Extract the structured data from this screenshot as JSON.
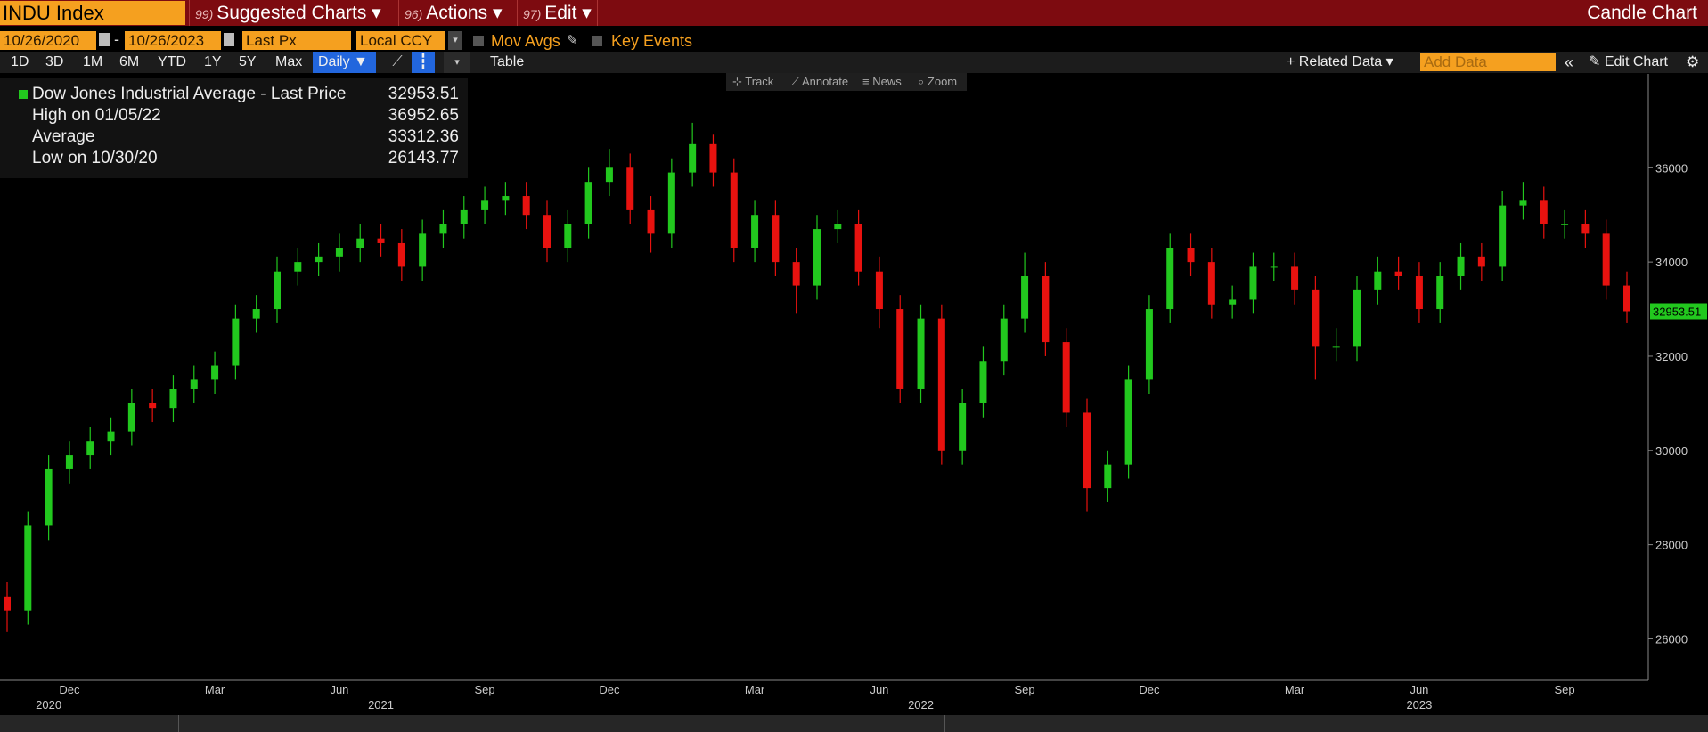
{
  "toolbar": {
    "ticker": "INDU Index",
    "menus": [
      {
        "code": "99)",
        "label": "Suggested Charts"
      },
      {
        "code": "96)",
        "label": "Actions"
      },
      {
        "code": "97)",
        "label": "Edit"
      }
    ],
    "view_title": "Candle Chart"
  },
  "controls": {
    "start_date": "10/26/2020",
    "separator": "-",
    "end_date": "10/26/2023",
    "field": "Last Px",
    "currency": "Local CCY",
    "toggles": [
      "Mov Avgs",
      "Key Events"
    ]
  },
  "range_bar": {
    "periods": [
      "1D",
      "3D",
      "1M",
      "6M",
      "YTD",
      "1Y",
      "5Y",
      "Max"
    ],
    "frequency": "Daily",
    "table": "Table",
    "related_data": "Related Data",
    "add_data_placeholder": "Add Data",
    "edit_chart": "Edit Chart"
  },
  "chart_tools": [
    "Track",
    "Annotate",
    "News",
    "Zoom"
  ],
  "chart_data": {
    "type": "candlestick",
    "up_color": "#22c81e",
    "down_color": "#e8120f",
    "legend": {
      "title": "Dow Jones Industrial Average - Last Price",
      "stats": [
        {
          "label": "High on 01/05/22",
          "value": 36952.65
        },
        {
          "label": "Average",
          "value": 33312.36
        },
        {
          "label": "Low on 10/30/20",
          "value": 26143.77
        }
      ]
    },
    "categories": [
      null,
      null,
      null,
      "Dec",
      null,
      null,
      null,
      null,
      null,
      null,
      "Mar",
      null,
      null,
      null,
      null,
      null,
      "Jun",
      null,
      null,
      null,
      null,
      null,
      null,
      "Sep",
      null,
      null,
      null,
      null,
      null,
      "Dec",
      null,
      null,
      null,
      null,
      null,
      null,
      "Mar",
      null,
      null,
      null,
      null,
      null,
      "Jun",
      null,
      null,
      null,
      null,
      null,
      null,
      "Sep",
      null,
      null,
      null,
      null,
      null,
      "Dec",
      null,
      null,
      null,
      null,
      null,
      null,
      "Mar",
      null,
      null,
      null,
      null,
      null,
      "Jun",
      null,
      null,
      null,
      null,
      null,
      null,
      "Sep",
      null,
      null,
      null
    ],
    "year_categories": [
      null,
      null,
      "2020",
      null,
      null,
      null,
      null,
      null,
      null,
      null,
      null,
      null,
      null,
      null,
      null,
      null,
      null,
      null,
      "2021",
      null,
      null,
      null,
      null,
      null,
      null,
      null,
      null,
      null,
      null,
      null,
      null,
      null,
      null,
      null,
      null,
      null,
      null,
      null,
      null,
      null,
      null,
      null,
      null,
      null,
      "2022",
      null,
      null,
      null,
      null,
      null,
      null,
      null,
      null,
      null,
      null,
      null,
      null,
      null,
      null,
      null,
      null,
      null,
      null,
      null,
      null,
      null,
      null,
      null,
      "2023",
      null,
      null,
      null,
      null,
      null,
      null,
      null,
      null,
      null,
      null
    ],
    "open": [
      26900,
      26600,
      28400,
      29600,
      29900,
      30200,
      30400,
      31000,
      30900,
      31300,
      31500,
      31800,
      32800,
      33000,
      33800,
      34000,
      34100,
      34300,
      34500,
      34400,
      33900,
      34600,
      34800,
      35100,
      35300,
      35400,
      35000,
      34300,
      34800,
      35700,
      36000,
      35100,
      34600,
      35900,
      36500,
      35900,
      34300,
      35000,
      34000,
      33500,
      34700,
      34800,
      33800,
      33000,
      31300,
      32800,
      30000,
      31000,
      31900,
      32800,
      33700,
      32300,
      30800,
      29200,
      29700,
      31500,
      33000,
      34300,
      34000,
      33100,
      33200,
      33900,
      33900,
      33400,
      32200,
      32200,
      33400,
      33800,
      33700,
      33000,
      33700,
      34100,
      33900,
      35200,
      35300,
      34800,
      34800,
      34600,
      33500
    ],
    "high": [
      27200,
      28700,
      29900,
      30200,
      30500,
      30700,
      31300,
      31300,
      31600,
      31800,
      32100,
      33100,
      33300,
      34100,
      34300,
      34400,
      34600,
      34800,
      34800,
      34700,
      34900,
      35100,
      35400,
      35600,
      35700,
      35700,
      35300,
      35100,
      36000,
      36400,
      36300,
      35400,
      36200,
      36952.65,
      36700,
      36200,
      35300,
      35300,
      34300,
      35000,
      35100,
      35100,
      34100,
      33300,
      33100,
      33100,
      31300,
      32200,
      33100,
      34200,
      34000,
      32600,
      31100,
      30000,
      31800,
      33300,
      34600,
      34600,
      34300,
      33500,
      34200,
      34200,
      34200,
      33700,
      32600,
      33700,
      34100,
      34100,
      34000,
      34000,
      34400,
      34400,
      35500,
      35700,
      35600,
      35100,
      35100,
      34900,
      33800
    ],
    "low": [
      26143.77,
      26300,
      28100,
      29300,
      29600,
      29900,
      30100,
      30600,
      30600,
      31000,
      31200,
      31500,
      32500,
      32700,
      33500,
      33700,
      33800,
      34000,
      34100,
      33600,
      33600,
      34300,
      34500,
      34800,
      35000,
      34700,
      34000,
      34000,
      34500,
      35400,
      34800,
      34200,
      34300,
      35600,
      35600,
      34000,
      34000,
      33700,
      32900,
      33200,
      34400,
      33500,
      32600,
      31000,
      31000,
      29700,
      29700,
      30700,
      31600,
      32500,
      32000,
      30500,
      28700,
      28900,
      29400,
      31200,
      32700,
      33700,
      32800,
      32800,
      32900,
      33600,
      33100,
      31500,
      31900,
      31900,
      33100,
      33400,
      32700,
      32700,
      33400,
      33600,
      33600,
      34900,
      34500,
      34500,
      34300,
      33200,
      32700
    ],
    "close": [
      26600,
      28400,
      29600,
      29900,
      30200,
      30400,
      31000,
      30900,
      31300,
      31500,
      31800,
      32800,
      33000,
      33800,
      34000,
      34100,
      34300,
      34500,
      34400,
      33900,
      34600,
      34800,
      35100,
      35300,
      35400,
      35000,
      34300,
      34800,
      35700,
      36000,
      35100,
      34600,
      35900,
      36500,
      35900,
      34300,
      35000,
      34000,
      33500,
      34700,
      34800,
      33800,
      33000,
      31300,
      32800,
      30000,
      31000,
      31900,
      32800,
      33700,
      32300,
      30800,
      29200,
      29700,
      31500,
      33000,
      34300,
      34000,
      33100,
      33200,
      33900,
      33900,
      33400,
      32200,
      32200,
      33400,
      33800,
      33700,
      33000,
      33700,
      34100,
      33900,
      35200,
      35300,
      34800,
      34800,
      34600,
      33500,
      32953.51
    ],
    "ylim": [
      25120,
      37990
    ],
    "yticks": [
      26000,
      28000,
      30000,
      32000,
      34000,
      36000
    ],
    "grid": false
  }
}
